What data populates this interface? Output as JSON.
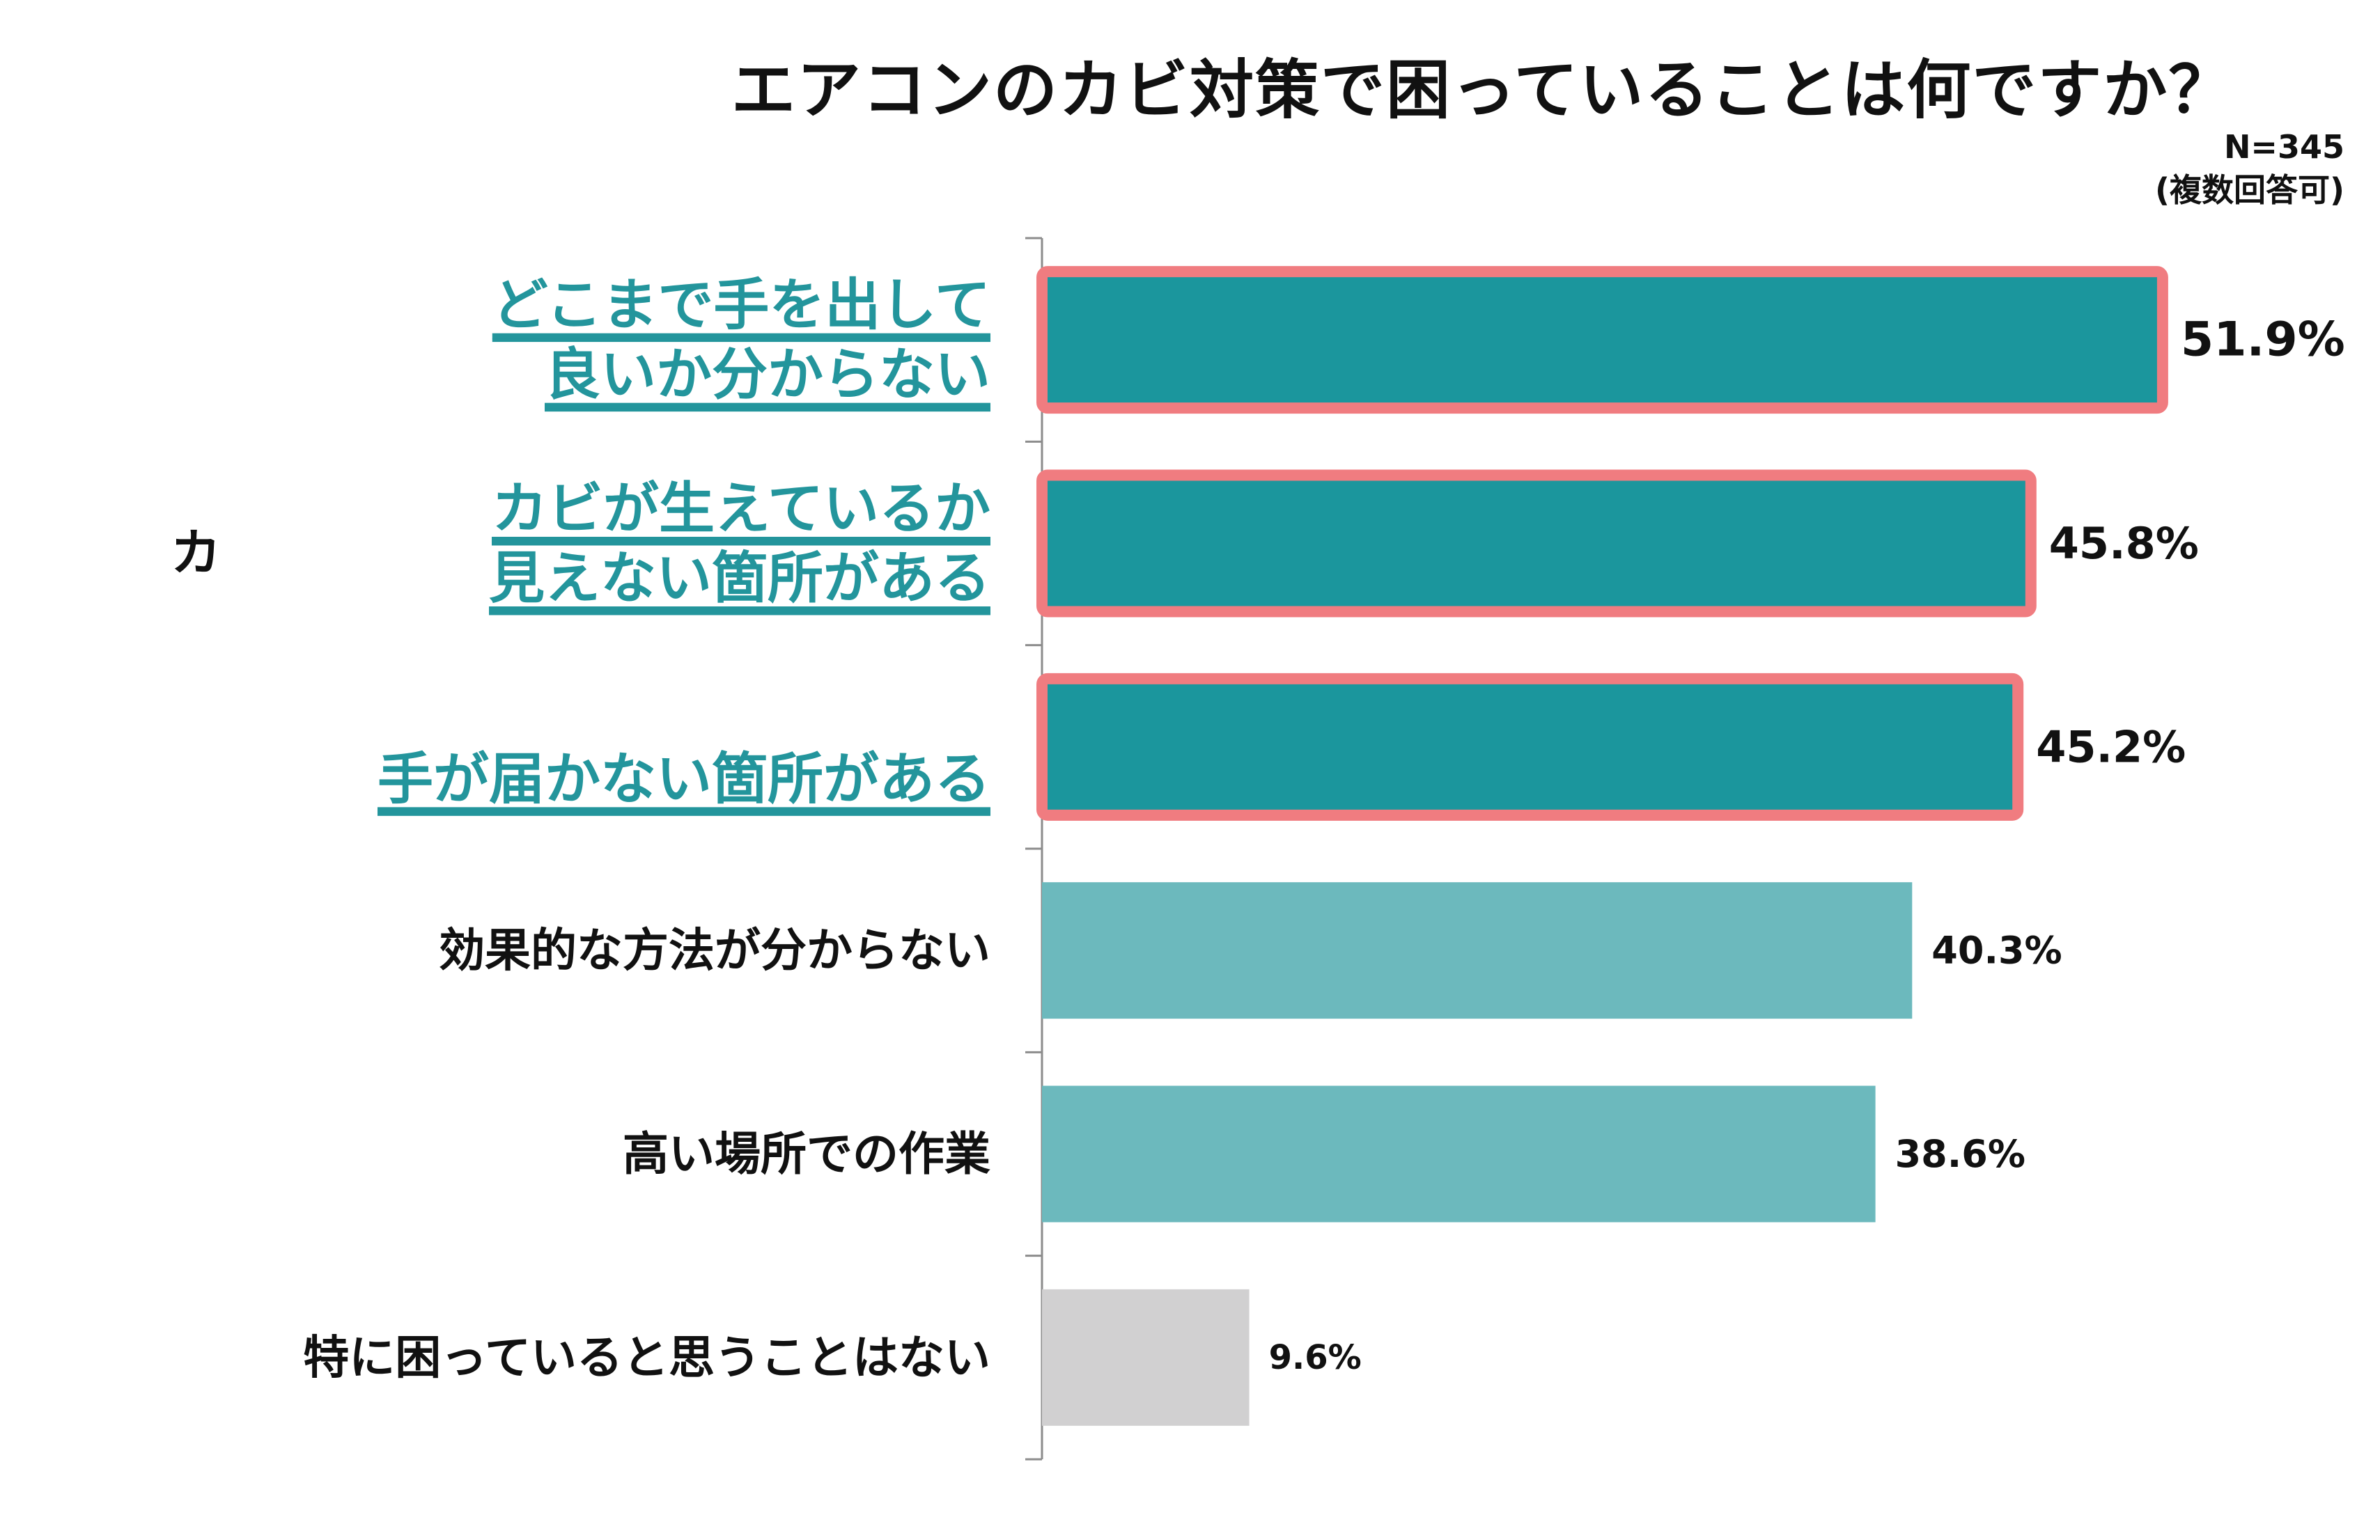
{
  "chart_data": {
    "type": "bar",
    "orientation": "horizontal",
    "title": "エアコンのカビ対策で困っていることは何ですか？",
    "sample_size": "N=345",
    "note": "(複数回答可)",
    "clipped_text": "カビ",
    "xlim": [
      0,
      60
    ],
    "unit": "%",
    "categories": [
      [
        "どこまで手を出して",
        "良いか分からない"
      ],
      [
        "カビが生えているか",
        "見えない箇所がある"
      ],
      [
        "手が届かない箇所がある"
      ],
      [
        "効果的な方法が分からない"
      ],
      [
        "高い場所での作業"
      ],
      [
        "特に困っていると思うことはない"
      ]
    ],
    "values": [
      51.9,
      45.8,
      45.2,
      40.3,
      38.6,
      9.6
    ],
    "value_labels": [
      "51.9%",
      "45.8%",
      "45.2%",
      "40.3%",
      "38.6%",
      "9.6%"
    ],
    "highlighted": [
      true,
      true,
      true,
      false,
      false,
      false
    ],
    "bar_colors": [
      "#1b969d",
      "#1b969d",
      "#1b969d",
      "#6cb9bd",
      "#6cb9bd",
      "#d1d0d1"
    ],
    "highlight_border_color": "#f07c80",
    "highlight_label_color": "#23959c",
    "default_label_color": "#111111"
  }
}
